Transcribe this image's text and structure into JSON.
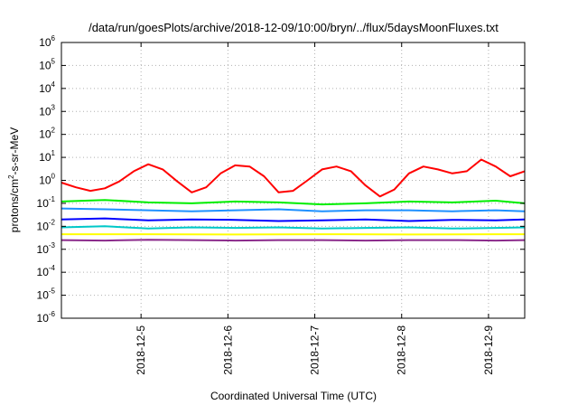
{
  "chart_data": {
    "type": "line",
    "title": "/data/run/goesPlots/archive/2018-12-09/10:00/bryn/../flux/5daysMoonFluxes.txt",
    "xlabel": "Coordinated Universal Time (UTC)",
    "ylabel": {
      "base": "protons/cm",
      "sup": "2",
      "rest": "-s-sr-MeV"
    },
    "y_scale": "log",
    "ylim": [
      1e-06,
      1000000.0
    ],
    "y_ticks": [
      {
        "base": "10",
        "exp": "-6",
        "value": 1e-06
      },
      {
        "base": "10",
        "exp": "-5",
        "value": 1e-05
      },
      {
        "base": "10",
        "exp": "-4",
        "value": 0.0001
      },
      {
        "base": "10",
        "exp": "-3",
        "value": 0.001
      },
      {
        "base": "10",
        "exp": "-2",
        "value": 0.01
      },
      {
        "base": "10",
        "exp": "-1",
        "value": 0.1
      },
      {
        "base": "10",
        "exp": "0",
        "value": 1
      },
      {
        "base": "10",
        "exp": "1",
        "value": 10
      },
      {
        "base": "10",
        "exp": "2",
        "value": 100
      },
      {
        "base": "10",
        "exp": "3",
        "value": 1000
      },
      {
        "base": "10",
        "exp": "4",
        "value": 10000
      },
      {
        "base": "10",
        "exp": "5",
        "value": 100000
      },
      {
        "base": "10",
        "exp": "6",
        "value": 1000000
      }
    ],
    "xlim": [
      "2018-12-04 02:00",
      "2018-12-09 10:00"
    ],
    "x_ticks": [
      "2018-12-5",
      "2018-12-6",
      "2018-12-7",
      "2018-12-8",
      "2018-12-9"
    ],
    "x_tick_dates": [
      "2018-12-05 00:00",
      "2018-12-06 00:00",
      "2018-12-07 00:00",
      "2018-12-08 00:00",
      "2018-12-09 00:00"
    ],
    "grid": true,
    "legend": "none",
    "series": [
      {
        "color": "#ff0000",
        "x": [
          "2018-12-04 02:00",
          "2018-12-04 06:00",
          "2018-12-04 10:00",
          "2018-12-04 14:00",
          "2018-12-04 18:00",
          "2018-12-04 22:00",
          "2018-12-05 02:00",
          "2018-12-05 06:00",
          "2018-12-05 10:00",
          "2018-12-05 14:00",
          "2018-12-05 18:00",
          "2018-12-05 22:00",
          "2018-12-06 02:00",
          "2018-12-06 06:00",
          "2018-12-06 10:00",
          "2018-12-06 14:00",
          "2018-12-06 18:00",
          "2018-12-06 22:00",
          "2018-12-07 02:00",
          "2018-12-07 06:00",
          "2018-12-07 10:00",
          "2018-12-07 14:00",
          "2018-12-07 18:00",
          "2018-12-07 22:00",
          "2018-12-08 02:00",
          "2018-12-08 06:00",
          "2018-12-08 10:00",
          "2018-12-08 14:00",
          "2018-12-08 18:00",
          "2018-12-08 22:00",
          "2018-12-09 02:00",
          "2018-12-09 06:00",
          "2018-12-09 10:00"
        ],
        "y": [
          0.8,
          0.5,
          0.35,
          0.45,
          0.9,
          2.5,
          5,
          3,
          0.9,
          0.3,
          0.5,
          2,
          4.5,
          4,
          1.5,
          0.3,
          0.35,
          1,
          3,
          4,
          2.5,
          0.6,
          0.2,
          0.4,
          2,
          4,
          3,
          2,
          2.5,
          8,
          4,
          1.5,
          2.5
        ]
      },
      {
        "color": "#00ee00",
        "x": [
          "2018-12-04 02:00",
          "2018-12-04 14:00",
          "2018-12-05 02:00",
          "2018-12-05 14:00",
          "2018-12-06 02:00",
          "2018-12-06 14:00",
          "2018-12-07 02:00",
          "2018-12-07 14:00",
          "2018-12-08 02:00",
          "2018-12-08 14:00",
          "2018-12-09 02:00",
          "2018-12-09 10:00"
        ],
        "y": [
          0.12,
          0.14,
          0.11,
          0.1,
          0.12,
          0.11,
          0.09,
          0.1,
          0.12,
          0.11,
          0.13,
          0.1
        ]
      },
      {
        "color": "#1e90ff",
        "x": [
          "2018-12-04 02:00",
          "2018-12-04 14:00",
          "2018-12-05 02:00",
          "2018-12-05 14:00",
          "2018-12-06 02:00",
          "2018-12-06 14:00",
          "2018-12-07 02:00",
          "2018-12-07 14:00",
          "2018-12-08 02:00",
          "2018-12-08 14:00",
          "2018-12-09 02:00",
          "2018-12-09 10:00"
        ],
        "y": [
          0.06,
          0.055,
          0.05,
          0.045,
          0.05,
          0.055,
          0.045,
          0.05,
          0.05,
          0.045,
          0.05,
          0.045
        ]
      },
      {
        "color": "#0000ff",
        "x": [
          "2018-12-04 02:00",
          "2018-12-04 14:00",
          "2018-12-05 02:00",
          "2018-12-05 14:00",
          "2018-12-06 02:00",
          "2018-12-06 14:00",
          "2018-12-07 02:00",
          "2018-12-07 14:00",
          "2018-12-08 02:00",
          "2018-12-08 14:00",
          "2018-12-09 02:00",
          "2018-12-09 10:00"
        ],
        "y": [
          0.02,
          0.022,
          0.018,
          0.02,
          0.019,
          0.017,
          0.018,
          0.02,
          0.017,
          0.019,
          0.018,
          0.02
        ]
      },
      {
        "color": "#00c8c8",
        "x": [
          "2018-12-04 02:00",
          "2018-12-04 14:00",
          "2018-12-05 02:00",
          "2018-12-05 14:00",
          "2018-12-06 02:00",
          "2018-12-06 14:00",
          "2018-12-07 02:00",
          "2018-12-07 14:00",
          "2018-12-08 02:00",
          "2018-12-08 14:00",
          "2018-12-09 02:00",
          "2018-12-09 10:00"
        ],
        "y": [
          0.009,
          0.01,
          0.008,
          0.009,
          0.0085,
          0.009,
          0.008,
          0.0085,
          0.009,
          0.008,
          0.0085,
          0.009
        ]
      },
      {
        "color": "#ffff00",
        "x": [
          "2018-12-04 02:00",
          "2018-12-05 02:00",
          "2018-12-06 02:00",
          "2018-12-07 02:00",
          "2018-12-08 02:00",
          "2018-12-09 02:00",
          "2018-12-09 10:00"
        ],
        "y": [
          0.0045,
          0.0045,
          0.0044,
          0.0045,
          0.0044,
          0.0045,
          0.0045
        ]
      },
      {
        "color": "#8b2a8b",
        "x": [
          "2018-12-04 02:00",
          "2018-12-04 14:00",
          "2018-12-05 02:00",
          "2018-12-05 14:00",
          "2018-12-06 02:00",
          "2018-12-06 14:00",
          "2018-12-07 02:00",
          "2018-12-07 14:00",
          "2018-12-08 02:00",
          "2018-12-08 14:00",
          "2018-12-09 02:00",
          "2018-12-09 10:00"
        ],
        "y": [
          0.0025,
          0.0024,
          0.0026,
          0.0025,
          0.0024,
          0.0025,
          0.0025,
          0.0024,
          0.0025,
          0.0025,
          0.0024,
          0.0025
        ]
      }
    ]
  }
}
